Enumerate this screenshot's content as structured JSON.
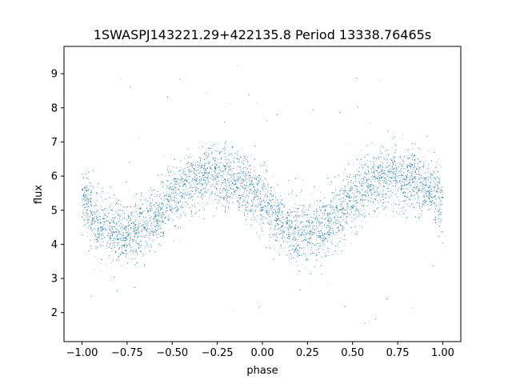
{
  "chart_data": {
    "type": "scatter",
    "title": "1SWASPJ143221.29+422135.8 Period 13338.76465s",
    "xlabel": "phase",
    "ylabel": "flux",
    "xlim": [
      -1.1,
      1.1
    ],
    "ylim": [
      1.15,
      9.8
    ],
    "xticks": [
      -1.0,
      -0.75,
      -0.5,
      -0.25,
      0.0,
      0.25,
      0.5,
      0.75,
      1.0
    ],
    "xtick_labels": [
      "−1.00",
      "−0.75",
      "−0.50",
      "−0.25",
      "0.00",
      "0.25",
      "0.50",
      "0.75",
      "1.00"
    ],
    "yticks": [
      2,
      3,
      4,
      5,
      6,
      7,
      8,
      9
    ],
    "ytick_labels": [
      "2",
      "3",
      "4",
      "5",
      "6",
      "7",
      "8",
      "9"
    ],
    "grid": false,
    "point_color": "#1f77b4",
    "series_trend": {
      "phase": [
        -1.0,
        -0.9,
        -0.8,
        -0.7,
        -0.6,
        -0.5,
        -0.4,
        -0.3,
        -0.2,
        -0.1,
        0.0,
        0.1,
        0.2,
        0.3,
        0.4,
        0.5,
        0.6,
        0.7,
        0.8,
        0.9,
        1.0
      ],
      "flux": [
        5.3,
        4.6,
        4.3,
        4.4,
        4.8,
        5.4,
        5.8,
        6.0,
        5.9,
        5.7,
        5.3,
        4.6,
        4.3,
        4.4,
        4.8,
        5.4,
        5.8,
        6.0,
        5.9,
        5.7,
        5.3
      ]
    },
    "scatter_spread": 0.45,
    "approx_point_count": 14000
  }
}
